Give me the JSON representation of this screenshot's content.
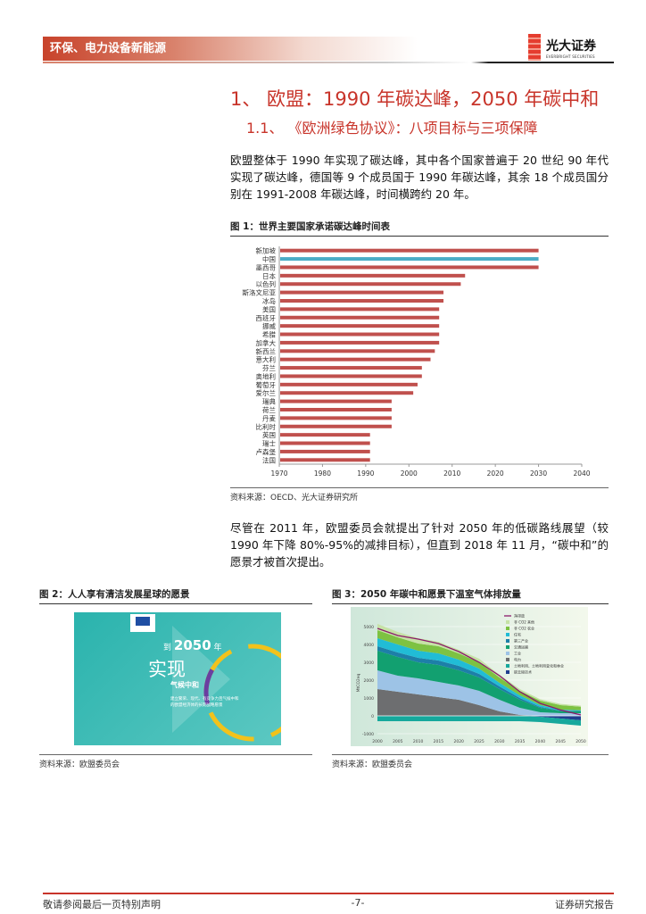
{
  "header": {
    "section": "环保、电力设备新能源",
    "logo_cn": "光大证券",
    "logo_en": "EVERBRIGHT SECURITIES"
  },
  "title": "1、 欧盟：1990 年碳达峰，2050 年碳中和",
  "subtitle": "1.1、 《欧洲绿色协议》：八项目标与三项保障",
  "para1": "欧盟整体于 1990 年实现了碳达峰，其中各个国家普遍于 20 世纪 90 年代实现了碳达峰，德国等 9 个成员国于 1990 年碳达峰，其余 18 个成员国分别在 1991-2008 年碳达峰，时间横跨约 20 年。",
  "para2": "尽管在 2011 年，欧盟委员会就提出了针对 2050 年的低碳路线展望（较 1990 年下降 80%-95%的减排目标），但直到 2018 年 11 月，“碳中和”的愿景才被首次提出。",
  "fig1": {
    "title": "图 1：世界主要国家承诺碳达峰时间表",
    "source": "资料来源：OECD、光大证券研究所"
  },
  "fig2": {
    "title": "图 2：人人享有清洁发展星球的愿景",
    "source": "资料来源：欧盟委员会",
    "img_text": {
      "a": "到",
      "b": "2050",
      "c": "年",
      "d": "实现",
      "e": "气候中和",
      "f": "建立繁荣、现代、有竞争力且气候中和的欧盟经济体的长期战略愿景"
    }
  },
  "fig3": {
    "title": "图 3：2050 年碳中和愿景下温室气体排放量",
    "source": "资料来源：欧盟委员会"
  },
  "chart_data": [
    {
      "type": "bar",
      "orientation": "horizontal",
      "categories": [
        "新加坡",
        "中国",
        "墨西哥",
        "日本",
        "以色列",
        "斯洛文尼亚",
        "冰岛",
        "美国",
        "西班牙",
        "挪威",
        "希腊",
        "加拿大",
        "新西兰",
        "意大利",
        "芬兰",
        "奥地利",
        "葡萄牙",
        "爱尔兰",
        "瑞典",
        "荷兰",
        "丹麦",
        "比利时",
        "英国",
        "瑞士",
        "卢森堡",
        "法国"
      ],
      "values": [
        2030,
        2030,
        2030,
        2013,
        2012,
        2008,
        2008,
        2007,
        2007,
        2007,
        2007,
        2007,
        2006,
        2005,
        2003,
        2003,
        2002,
        2001,
        1996,
        1996,
        1996,
        1996,
        1991,
        1991,
        1991,
        1991
      ],
      "highlight": "中国",
      "colors": {
        "default": "#c0504d",
        "highlight": "#4bacc6"
      },
      "xlim": [
        1970,
        2040
      ],
      "xticks": [
        "1970",
        "1980",
        "1990",
        "2000",
        "2010",
        "2020",
        "2030",
        "2040"
      ],
      "grid": false
    },
    {
      "type": "area",
      "stacked": true,
      "ylabel": "MtCO2eq",
      "ylim": [
        -1000,
        5000
      ],
      "yticks": [
        "-1000",
        "0",
        "1000",
        "2000",
        "3000",
        "4000",
        "5000"
      ],
      "x": [
        "2000",
        "2005",
        "2010",
        "2015",
        "2020",
        "2025",
        "2030",
        "2035",
        "2040",
        "2045",
        "2050"
      ],
      "series": [
        {
          "name": "碳去除技术",
          "color": "#1f3f8f",
          "values": [
            0,
            0,
            0,
            0,
            0,
            0,
            0,
            0,
            -50,
            -150,
            -250
          ]
        },
        {
          "name": "土地利用、土地利用变化和林业",
          "color": "#16a89c",
          "values": [
            -300,
            -300,
            -300,
            -300,
            -300,
            -300,
            -300,
            -300,
            -300,
            -300,
            -300
          ]
        },
        {
          "name": "电力",
          "color": "#6d6e70",
          "values": [
            1500,
            1350,
            1200,
            1050,
            900,
            600,
            250,
            50,
            0,
            0,
            0
          ]
        },
        {
          "name": "工业",
          "color": "#9dc3e6",
          "values": [
            1050,
            900,
            900,
            850,
            800,
            800,
            650,
            400,
            200,
            150,
            150
          ]
        },
        {
          "name": "交通运输",
          "color": "#12a070",
          "values": [
            1100,
            1050,
            900,
            950,
            850,
            750,
            600,
            450,
            250,
            120,
            100
          ]
        },
        {
          "name": "第三产业",
          "color": "#1d7fa8",
          "values": [
            250,
            250,
            250,
            250,
            250,
            200,
            150,
            100,
            50,
            30,
            20
          ]
        },
        {
          "name": "住宅",
          "color": "#21bcd6",
          "values": [
            450,
            450,
            400,
            400,
            350,
            300,
            200,
            150,
            100,
            50,
            40
          ]
        },
        {
          "name": "非 CO2 农业",
          "color": "#7dc242",
          "values": [
            450,
            400,
            400,
            400,
            350,
            350,
            300,
            250,
            250,
            250,
            200
          ]
        },
        {
          "name": "非 CO2 其他",
          "color": "#c6e2a6",
          "values": [
            350,
            300,
            300,
            250,
            200,
            200,
            150,
            100,
            80,
            70,
            60
          ]
        }
      ],
      "line": {
        "name": "净排放",
        "color": "#8b1a6b",
        "values": [
          4900,
          4500,
          4300,
          4050,
          3600,
          3000,
          2250,
          1350,
          700,
          330,
          50
        ]
      }
    }
  ]
}
